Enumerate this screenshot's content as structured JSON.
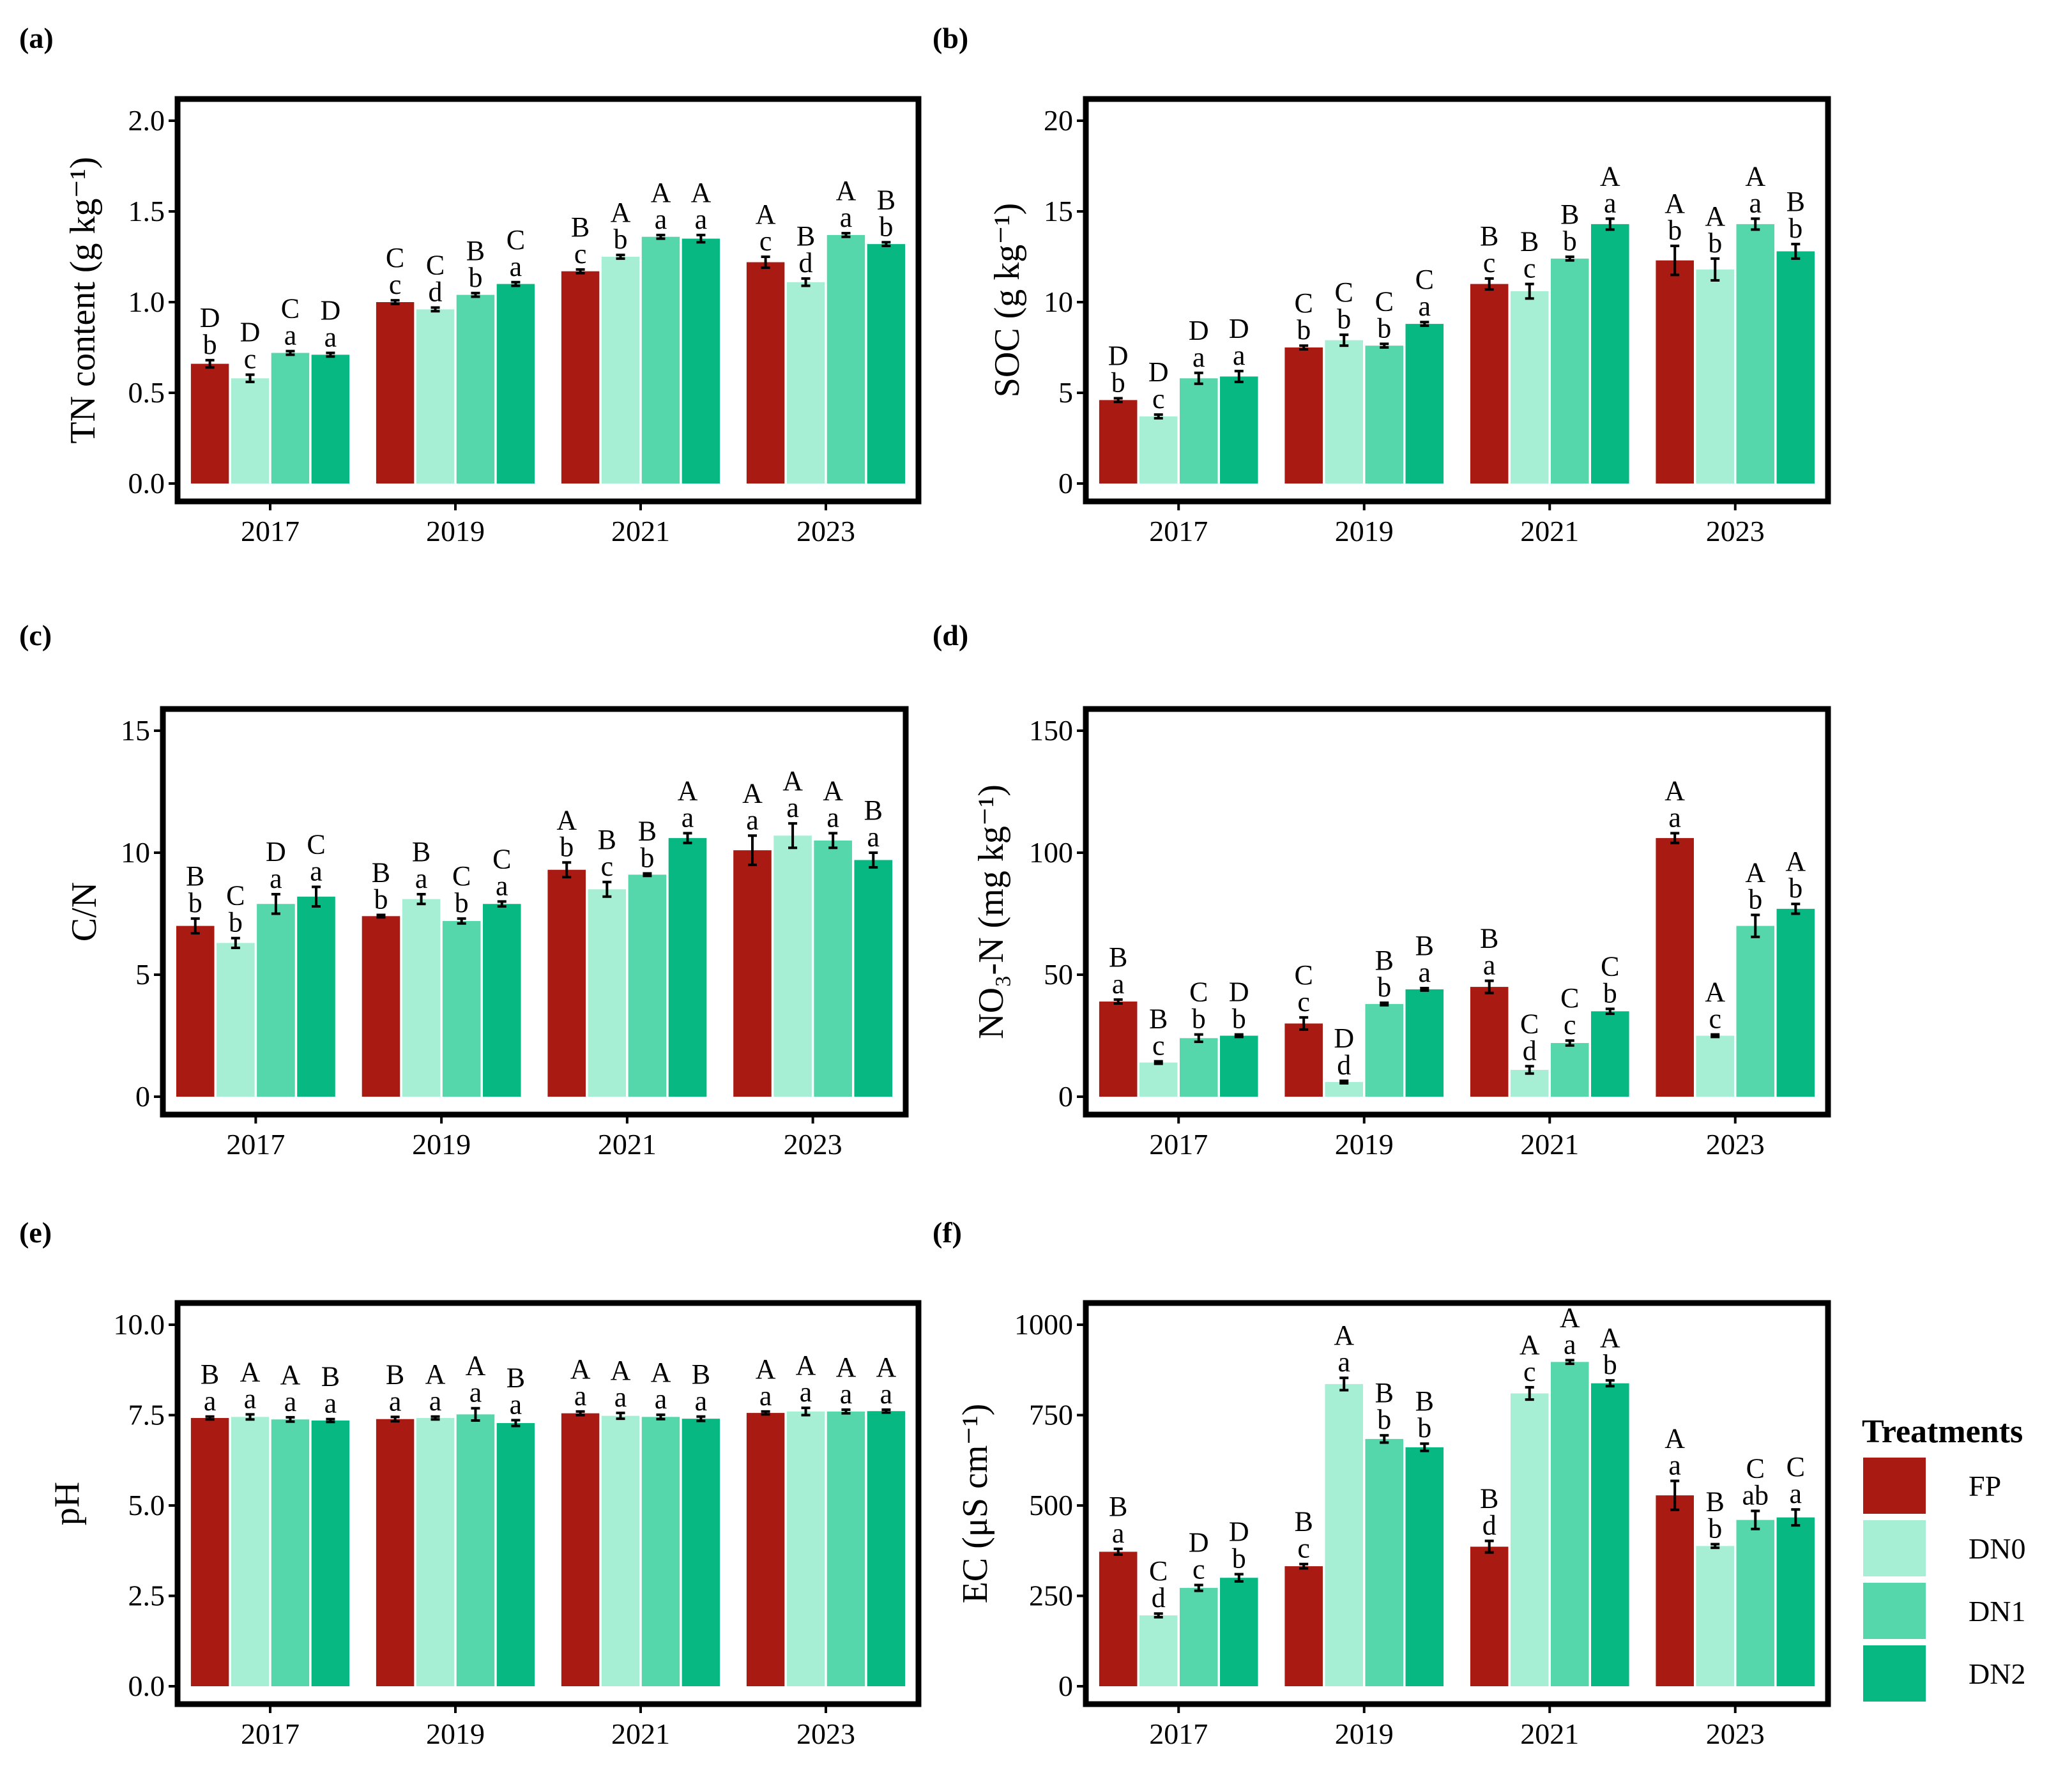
{
  "colors": {
    "FP": "#a81a12",
    "DN0": "#a6efd4",
    "DN1": "#56d6ab",
    "DN2": "#08b883",
    "frame": "#000000"
  },
  "legend": {
    "title": "Treatments",
    "items": [
      {
        "label": "FP",
        "color": "#a81a12"
      },
      {
        "label": "DN0",
        "color": "#a6efd4"
      },
      {
        "label": "DN1",
        "color": "#56d6ab"
      },
      {
        "label": "DN2",
        "color": "#08b883"
      }
    ]
  },
  "chart_data": [
    {
      "panel": "(a)",
      "type": "bar",
      "ylabel": "TN content  (g kg⁻¹)",
      "categories": [
        "2017",
        "2019",
        "2021",
        "2023"
      ],
      "ylim": [
        0,
        2.0
      ],
      "yticks": [
        "0.0",
        "0.5",
        "1.0",
        "1.5",
        "2.0"
      ],
      "series": [
        {
          "name": "FP",
          "values": [
            0.66,
            1.0,
            1.17,
            1.22
          ],
          "errors": [
            0.02,
            0.01,
            0.01,
            0.03
          ],
          "upper": [
            "D",
            "C",
            "B",
            "A"
          ],
          "lower": [
            "b",
            "c",
            "c",
            "c"
          ]
        },
        {
          "name": "DN0",
          "values": [
            0.58,
            0.96,
            1.25,
            1.11
          ],
          "errors": [
            0.02,
            0.01,
            0.01,
            0.02
          ],
          "upper": [
            "D",
            "C",
            "A",
            "B"
          ],
          "lower": [
            "c",
            "d",
            "b",
            "d"
          ]
        },
        {
          "name": "DN1",
          "values": [
            0.72,
            1.04,
            1.36,
            1.37
          ],
          "errors": [
            0.01,
            0.01,
            0.01,
            0.01
          ],
          "upper": [
            "C",
            "B",
            "A",
            "A"
          ],
          "lower": [
            "a",
            "b",
            "a",
            "a"
          ]
        },
        {
          "name": "DN2",
          "values": [
            0.71,
            1.1,
            1.35,
            1.32
          ],
          "errors": [
            0.01,
            0.01,
            0.02,
            0.01
          ],
          "upper": [
            "D",
            "C",
            "A",
            "B"
          ],
          "lower": [
            "a",
            "a",
            "a",
            "b"
          ]
        }
      ]
    },
    {
      "panel": "(b)",
      "type": "bar",
      "ylabel": "SOC (g kg⁻¹)",
      "categories": [
        "2017",
        "2019",
        "2021",
        "2023"
      ],
      "ylim": [
        0,
        20
      ],
      "yticks": [
        "0",
        "5",
        "10",
        "15",
        "20"
      ],
      "series": [
        {
          "name": "FP",
          "values": [
            4.6,
            7.5,
            11.0,
            12.3
          ],
          "errors": [
            0.1,
            0.1,
            0.3,
            0.8
          ],
          "upper": [
            "D",
            "C",
            "B",
            "A"
          ],
          "lower": [
            "b",
            "b",
            "c",
            "b"
          ]
        },
        {
          "name": "DN0",
          "values": [
            3.7,
            7.9,
            10.6,
            11.8
          ],
          "errors": [
            0.1,
            0.3,
            0.4,
            0.6
          ],
          "upper": [
            "D",
            "C",
            "B",
            "A"
          ],
          "lower": [
            "c",
            "b",
            "c",
            "b"
          ]
        },
        {
          "name": "DN1",
          "values": [
            5.8,
            7.6,
            12.4,
            14.3
          ],
          "errors": [
            0.3,
            0.1,
            0.1,
            0.3
          ],
          "upper": [
            "D",
            "C",
            "B",
            "A"
          ],
          "lower": [
            "a",
            "b",
            "b",
            "a"
          ]
        },
        {
          "name": "DN2",
          "values": [
            5.9,
            8.8,
            14.3,
            12.8
          ],
          "errors": [
            0.3,
            0.1,
            0.3,
            0.4
          ],
          "upper": [
            "D",
            "C",
            "A",
            "B"
          ],
          "lower": [
            "a",
            "a",
            "a",
            "b"
          ]
        }
      ]
    },
    {
      "panel": "(c)",
      "type": "bar",
      "ylabel": "C/N",
      "categories": [
        "2017",
        "2019",
        "2021",
        "2023"
      ],
      "ylim": [
        0,
        15
      ],
      "yticks": [
        "0",
        "5",
        "10",
        "15"
      ],
      "series": [
        {
          "name": "FP",
          "values": [
            7.0,
            7.4,
            9.3,
            10.1
          ],
          "errors": [
            0.3,
            0.05,
            0.3,
            0.6
          ],
          "upper": [
            "B",
            "B",
            "A",
            "A"
          ],
          "lower": [
            "b",
            "b",
            "b",
            "a"
          ]
        },
        {
          "name": "DN0",
          "values": [
            6.3,
            8.1,
            8.5,
            10.7
          ],
          "errors": [
            0.2,
            0.2,
            0.3,
            0.5
          ],
          "upper": [
            "C",
            "B",
            "B",
            "A"
          ],
          "lower": [
            "b",
            "a",
            "c",
            "a"
          ]
        },
        {
          "name": "DN1",
          "values": [
            7.9,
            7.2,
            9.1,
            10.5
          ],
          "errors": [
            0.4,
            0.1,
            0.05,
            0.3
          ],
          "upper": [
            "D",
            "C",
            "B",
            "A"
          ],
          "lower": [
            "a",
            "b",
            "b",
            "a"
          ]
        },
        {
          "name": "DN2",
          "values": [
            8.2,
            7.9,
            10.6,
            9.7
          ],
          "errors": [
            0.4,
            0.1,
            0.2,
            0.3
          ],
          "upper": [
            "C",
            "C",
            "A",
            "B"
          ],
          "lower": [
            "a",
            "a",
            "a",
            "a"
          ]
        }
      ]
    },
    {
      "panel": "(d)",
      "type": "bar",
      "ylabel": "NO₃-N (mg kg⁻¹)",
      "categories": [
        "2017",
        "2019",
        "2021",
        "2023"
      ],
      "ylim": [
        0,
        150
      ],
      "yticks": [
        "0",
        "50",
        "100",
        "150"
      ],
      "series": [
        {
          "name": "FP",
          "values": [
            39,
            30,
            45,
            106
          ],
          "errors": [
            0.8,
            2.5,
            2.5,
            2.0
          ],
          "upper": [
            "B",
            "C",
            "B",
            "A"
          ],
          "lower": [
            "a",
            "c",
            "a",
            "a"
          ]
        },
        {
          "name": "DN0",
          "values": [
            14,
            6,
            11,
            25
          ],
          "errors": [
            0.5,
            0.5,
            1.5,
            0.5
          ],
          "upper": [
            "B",
            "D",
            "C",
            "A"
          ],
          "lower": [
            "c",
            "d",
            "d",
            "c"
          ]
        },
        {
          "name": "DN1",
          "values": [
            24,
            38,
            22,
            70
          ],
          "errors": [
            1.5,
            0.5,
            1.0,
            4.5
          ],
          "upper": [
            "C",
            "B",
            "C",
            "A"
          ],
          "lower": [
            "b",
            "b",
            "c",
            "b"
          ]
        },
        {
          "name": "DN2",
          "values": [
            25,
            44,
            35,
            77
          ],
          "errors": [
            0.5,
            0.5,
            1.0,
            2.0
          ],
          "upper": [
            "D",
            "B",
            "C",
            "A"
          ],
          "lower": [
            "b",
            "a",
            "b",
            "b"
          ]
        }
      ]
    },
    {
      "panel": "(e)",
      "type": "bar",
      "ylabel": "pH",
      "categories": [
        "2017",
        "2019",
        "2021",
        "2023"
      ],
      "ylim": [
        0,
        10
      ],
      "yticks": [
        "0.0",
        "2.5",
        "5.0",
        "7.5",
        "10.0"
      ],
      "series": [
        {
          "name": "FP",
          "values": [
            7.42,
            7.39,
            7.55,
            7.56
          ],
          "errors": [
            0.04,
            0.06,
            0.05,
            0.04
          ],
          "upper": [
            "B",
            "B",
            "A",
            "A"
          ],
          "lower": [
            "a",
            "a",
            "a",
            "a"
          ]
        },
        {
          "name": "DN0",
          "values": [
            7.45,
            7.42,
            7.48,
            7.6
          ],
          "errors": [
            0.07,
            0.04,
            0.08,
            0.1
          ],
          "upper": [
            "A",
            "A",
            "A",
            "A"
          ],
          "lower": [
            "a",
            "a",
            "a",
            "a"
          ]
        },
        {
          "name": "DN1",
          "values": [
            7.38,
            7.52,
            7.45,
            7.6
          ],
          "errors": [
            0.06,
            0.17,
            0.06,
            0.05
          ],
          "upper": [
            "A",
            "A",
            "A",
            "A"
          ],
          "lower": [
            "a",
            "a",
            "a",
            "a"
          ]
        },
        {
          "name": "DN2",
          "values": [
            7.35,
            7.28,
            7.4,
            7.61
          ],
          "errors": [
            0.04,
            0.08,
            0.06,
            0.04
          ],
          "upper": [
            "B",
            "B",
            "B",
            "A"
          ],
          "lower": [
            "a",
            "a",
            "a",
            "a"
          ]
        }
      ]
    },
    {
      "panel": "(f)",
      "type": "bar",
      "ylabel": "EC (μS cm⁻¹)",
      "categories": [
        "2017",
        "2019",
        "2021",
        "2023"
      ],
      "ylim": [
        0,
        1000
      ],
      "yticks": [
        "0",
        "250",
        "500",
        "750",
        "1000"
      ],
      "series": [
        {
          "name": "FP",
          "values": [
            372,
            332,
            386,
            528
          ],
          "errors": [
            8,
            6,
            16,
            40
          ],
          "upper": [
            "B",
            "B",
            "B",
            "A"
          ],
          "lower": [
            "a",
            "c",
            "d",
            "a"
          ]
        },
        {
          "name": "DN0",
          "values": [
            196,
            836,
            810,
            388
          ],
          "errors": [
            5,
            17,
            17,
            5
          ],
          "upper": [
            "C",
            "A",
            "A",
            "B"
          ],
          "lower": [
            "d",
            "a",
            "c",
            "b"
          ]
        },
        {
          "name": "DN1",
          "values": [
            272,
            684,
            897,
            460
          ],
          "errors": [
            8,
            10,
            5,
            25
          ],
          "upper": [
            "D",
            "B",
            "A",
            "C"
          ],
          "lower": [
            "c",
            "b",
            "a",
            "ab"
          ]
        },
        {
          "name": "DN2",
          "values": [
            300,
            661,
            838,
            467
          ],
          "errors": [
            10,
            10,
            8,
            22
          ],
          "upper": [
            "D",
            "B",
            "A",
            "C"
          ],
          "lower": [
            "b",
            "b",
            "b",
            "a"
          ]
        }
      ]
    }
  ]
}
